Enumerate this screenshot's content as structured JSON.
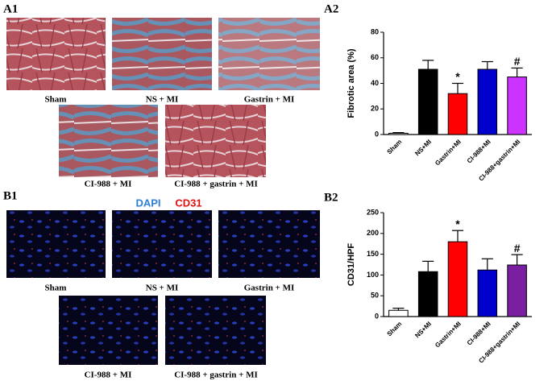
{
  "panels": {
    "a1": "A1",
    "a2": "A2",
    "b1": "B1",
    "b2": "B2"
  },
  "a1_captions": [
    "Sham",
    "NS + MI",
    "Gastrin + MI",
    "CI-988 + MI",
    "CI-988 + gastrin + MI"
  ],
  "b1_stains": {
    "dapi": "DAPI",
    "cd31": "CD31"
  },
  "b1_captions": [
    "Sham",
    "NS + MI",
    "Gastrin + MI",
    "CI-988 + MI",
    "CI-988 + gastrin + MI"
  ],
  "chart_data": [
    {
      "type": "bar",
      "ylabel": "Fibrotic area (%)",
      "categories": [
        "Sham",
        "NS+MI",
        "Gastrin+MI",
        "CI-988+MI",
        "CI-988+gastrin+MI"
      ],
      "values": [
        1,
        51,
        32,
        51,
        45
      ],
      "errors": [
        0.5,
        7,
        8,
        6,
        7
      ],
      "colors": [
        "#ffffff",
        "#000000",
        "#ff0000",
        "#0000cc",
        "#cc33ff"
      ],
      "value_annotations": [
        null,
        null,
        "*",
        null,
        "#"
      ],
      "ylim": [
        0,
        80
      ],
      "yticks": [
        0,
        20,
        40,
        60,
        80
      ]
    },
    {
      "type": "bar",
      "ylabel": "CD31/HPF",
      "categories": [
        "Sham",
        "NS+MI",
        "Gastrin+MI",
        "CI-988+MI",
        "CI-988+gastrin+MI"
      ],
      "values": [
        15,
        108,
        180,
        112,
        124
      ],
      "errors": [
        5,
        25,
        27,
        27,
        25
      ],
      "colors": [
        "#ffffff",
        "#000000",
        "#ff0000",
        "#0000cc",
        "#7a1fa2"
      ],
      "value_annotations": [
        null,
        null,
        "*",
        null,
        "#"
      ],
      "ylim": [
        0,
        250
      ],
      "yticks": [
        0,
        50,
        100,
        150,
        200,
        250
      ]
    }
  ]
}
